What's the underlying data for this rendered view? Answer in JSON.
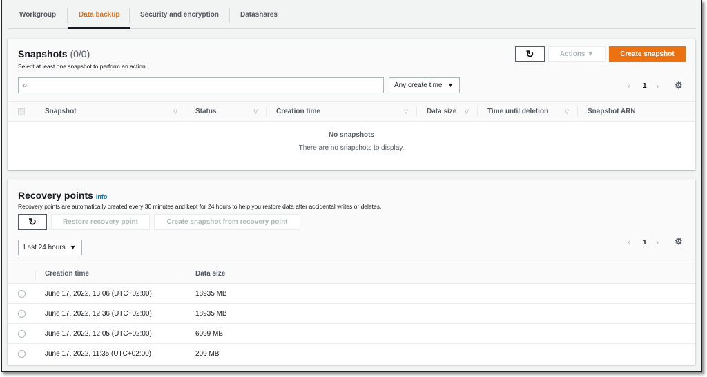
{
  "tabs": [
    {
      "label": "Workgroup"
    },
    {
      "label": "Data backup",
      "active": true
    },
    {
      "label": "Security and encryption"
    },
    {
      "label": "Datashares"
    }
  ],
  "snapshots": {
    "title": "Snapshots",
    "count": "(0/0)",
    "description": "Select at least one snapshot to perform an action.",
    "refresh_icon": "refresh-icon",
    "actions_label": "Actions",
    "create_label": "Create snapshot",
    "search_placeholder": "",
    "filter_value": "Any create time",
    "page": "1",
    "columns": [
      "Snapshot",
      "Status",
      "Creation time",
      "Data size",
      "Time until deletion",
      "Snapshot ARN"
    ],
    "empty_title": "No snapshots",
    "empty_text": "There are no snapshots to display."
  },
  "recovery": {
    "title": "Recovery points",
    "info": "Info",
    "description": "Recovery points are automatically created every 30 minutes and kept for 24 hours to help you restore data after accidental writes or deletes.",
    "restore_label": "Restore recovery point",
    "create_from_label": "Create snapshot from recovery point",
    "range_value": "Last 24 hours",
    "page": "1",
    "columns": [
      "Creation time",
      "Data size"
    ],
    "rows": [
      {
        "time": "June 17, 2022, 13:06 (UTC+02:00)",
        "size": "18935 MB"
      },
      {
        "time": "June 17, 2022, 12:36 (UTC+02:00)",
        "size": "18935 MB"
      },
      {
        "time": "June 17, 2022, 12:05 (UTC+02:00)",
        "size": "6099 MB"
      },
      {
        "time": "June 17, 2022, 11:35 (UTC+02:00)",
        "size": "209 MB"
      }
    ]
  },
  "colors": {
    "accent": "#ec7211",
    "link": "#0073bb"
  }
}
